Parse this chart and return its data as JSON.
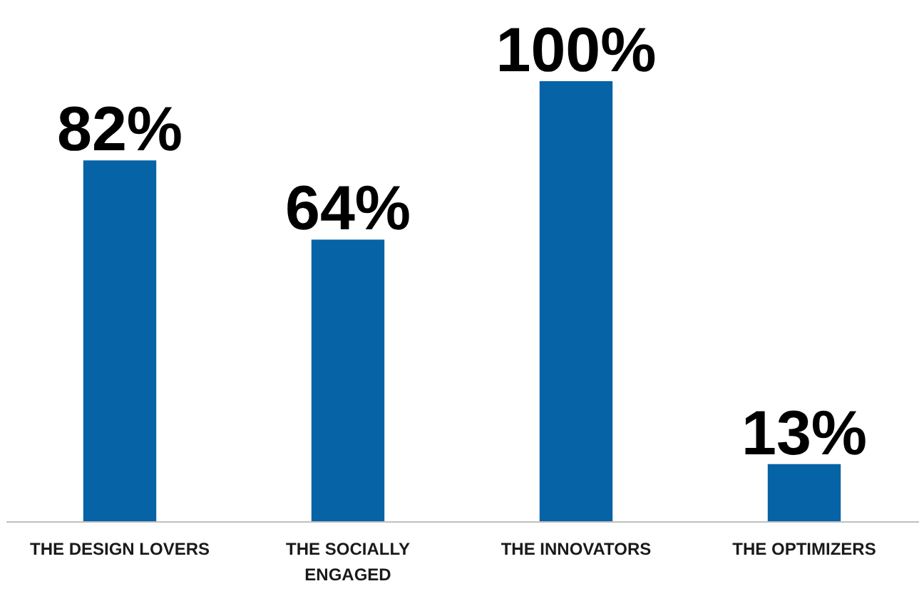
{
  "chart_data": {
    "type": "bar",
    "categories": [
      "THE DESIGN LOVERS",
      "THE SOCIALLY ENGAGED",
      "THE INNOVATORS",
      "THE OPTIMIZERS"
    ],
    "values": [
      82,
      64,
      100,
      13
    ],
    "value_labels": [
      "82%",
      "64%",
      "100%",
      "13%"
    ],
    "color": "#0563a6"
  }
}
